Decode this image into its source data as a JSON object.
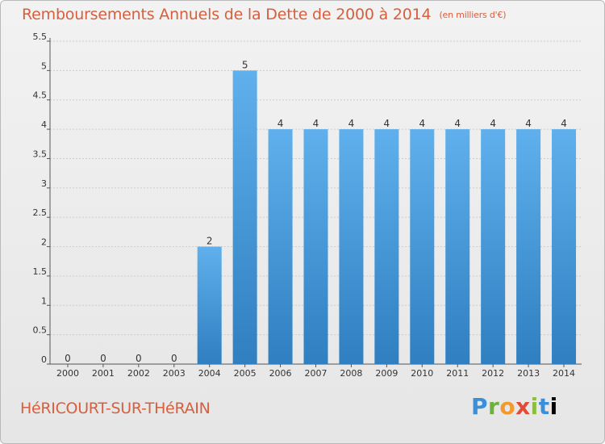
{
  "header": {
    "title": "Remboursements Annuels de la Dette de 2000 à 2014",
    "unit": "(en milliers d'€)"
  },
  "footer": {
    "city": "HéRICOURT-SUR-THéRAIN",
    "logo_letters": [
      "P",
      "r",
      "o",
      "x",
      "i",
      "t",
      "i"
    ]
  },
  "colors": {
    "title": "#d65f3e",
    "bar_top": "#5fb0ec",
    "bar_bottom": "#2f7fc1",
    "grid": "#cccccc"
  },
  "chart_data": {
    "type": "bar",
    "title": "Remboursements Annuels de la Dette de 2000 à 2014",
    "xlabel": "",
    "ylabel": "",
    "categories": [
      "2000",
      "2001",
      "2002",
      "2003",
      "2004",
      "2005",
      "2006",
      "2007",
      "2008",
      "2009",
      "2010",
      "2011",
      "2012",
      "2013",
      "2014"
    ],
    "values": [
      0,
      0,
      0,
      0,
      2,
      5,
      4,
      4,
      4,
      4,
      4,
      4,
      4,
      4,
      4
    ],
    "labels": [
      "0",
      "0",
      "0",
      "0",
      "2",
      "5",
      "4",
      "4",
      "4",
      "4",
      "4",
      "4",
      "4",
      "4",
      "4"
    ],
    "yticks": [
      "0",
      "0.5",
      "1",
      "1.5",
      "2",
      "2.5",
      "3",
      "3.5",
      "4",
      "4.5",
      "5",
      "5.5"
    ],
    "ylim": [
      0,
      5.5
    ],
    "grid": true,
    "legend": "none"
  }
}
